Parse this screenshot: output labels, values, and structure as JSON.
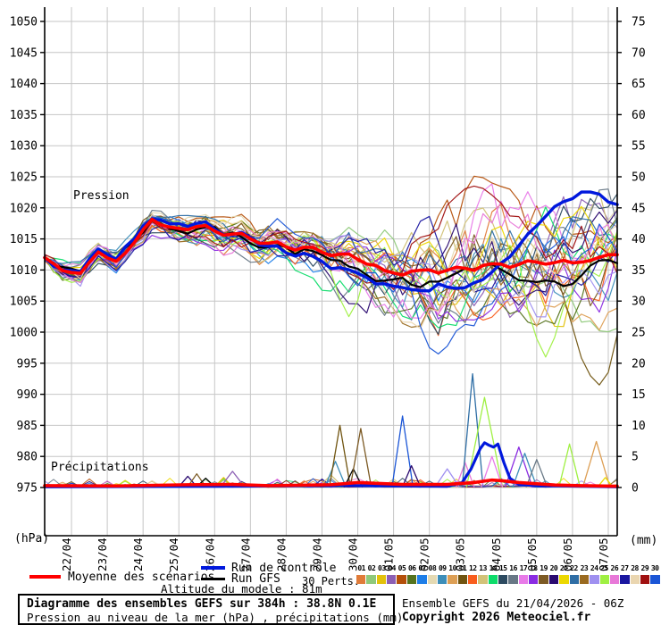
{
  "footer": {
    "box_line1": "Diagramme des ensembles GEFS sur 384h : 38.8N 0.1E",
    "box_line2": "Pression au niveau de la mer (hPa) , précipitations (mm)",
    "altitude": "Altitude du modele : 81m",
    "run_info": "Ensemble GEFS du 21/04/2026 - 06Z",
    "copyright": "Copyright 2026 Meteociel.fr"
  },
  "legend": {
    "mean_label": "Moyenne des scénarios",
    "control_label": "Run de contrôle",
    "gfs_label": "Run GFS",
    "perts_label": "30 Perts.",
    "mean_color": "#ff0000",
    "control_color": "#0018dd",
    "gfs_color": "#000000",
    "perts_numbers": [
      "01",
      "02",
      "03",
      "04",
      "05",
      "06",
      "07",
      "08",
      "09",
      "10",
      "11",
      "12",
      "13",
      "14",
      "15",
      "16",
      "17",
      "18",
      "19",
      "20",
      "21",
      "22",
      "23",
      "24",
      "25",
      "26",
      "27",
      "28",
      "29",
      "30"
    ]
  },
  "chart_data": {
    "type": "line",
    "title": "Diagramme des ensembles GEFS sur 384h : 38.8N 0.1E",
    "subtitle": "Pression au niveau de la mer (hPa) , précipitations (mm)",
    "annotations": {
      "pressure": "Pression",
      "precip": "Précipitations"
    },
    "left_axis": {
      "label": "(hPa)",
      "min": 975,
      "max": 1050,
      "step": 5
    },
    "right_axis": {
      "label": "(mm)",
      "min": 0,
      "max": 75,
      "step": 5
    },
    "x_axis": {
      "labels": [
        "22/04",
        "23/04",
        "24/04",
        "25/04",
        "26/04",
        "27/04",
        "28/04",
        "29/04",
        "30/04",
        "01/05",
        "02/05",
        "03/05",
        "04/05",
        "05/05",
        "06/05",
        "07/05"
      ],
      "run_hours": 384,
      "hours_to_first_tick": 18,
      "tick_interval_hours": 24
    },
    "grid_color": "#c6c6c6",
    "pressure": {
      "time_step_hours": 12,
      "mean": [
        1012,
        1010,
        1009.5,
        1013,
        1011.5,
        1014.5,
        1018,
        1017,
        1016.5,
        1017.2,
        1015.5,
        1015.8,
        1014.2,
        1014.5,
        1013.2,
        1013.8,
        1012.2,
        1012.5,
        1011,
        1010,
        1009.2,
        1010,
        1009.5,
        1010.5,
        1010,
        1011,
        1010.3,
        1011.5,
        1010.8,
        1011.5,
        1011.2,
        1012,
        1012.5
      ],
      "control": [
        1012,
        1010,
        1009.5,
        1013.2,
        1011.5,
        1015,
        1018.5,
        1017.5,
        1017,
        1017.5,
        1015.5,
        1016,
        1014,
        1014,
        1012.5,
        1012,
        1010.5,
        1010,
        1008.5,
        1007.5,
        1007,
        1006.5,
        1007.5,
        1007,
        1008,
        1009.5,
        1012,
        1015.5,
        1018.5,
        1021,
        1022.5,
        1022,
        1020.5
      ],
      "gfs": [
        1012,
        1010.2,
        1009.8,
        1013,
        1011.8,
        1014.8,
        1018,
        1016.8,
        1016,
        1017,
        1015.8,
        1015.5,
        1013.8,
        1014,
        1012.8,
        1013,
        1011.5,
        1010.5,
        1009,
        1008.5,
        1008.8,
        1007.5,
        1008.2,
        1009.5,
        1010,
        1011,
        1009.5,
        1008,
        1008.5,
        1007.5,
        1009,
        1011.5,
        1011
      ],
      "env_min": [
        1011,
        1008.5,
        1008,
        1011.5,
        1010,
        1013,
        1016,
        1015,
        1014.5,
        1014.5,
        1013,
        1013,
        1011,
        1011,
        1009.5,
        1009,
        1006.5,
        1006,
        1004.5,
        1003.5,
        1002.5,
        1002,
        1000,
        1002.5,
        1003,
        1003.5,
        1002.5,
        1003,
        1002,
        1002.5,
        1002,
        1001.5,
        1002
      ],
      "env_max": [
        1013,
        1011.5,
        1011,
        1014.5,
        1013,
        1016,
        1020,
        1019,
        1018.5,
        1019,
        1018,
        1018.5,
        1017,
        1017.5,
        1016.5,
        1017,
        1016,
        1016.5,
        1015.5,
        1015.5,
        1016,
        1017.5,
        1019,
        1021,
        1023.5,
        1022.5,
        1021.5,
        1021,
        1020.5,
        1021,
        1022,
        1021.5,
        1021
      ],
      "excursions": [
        {
          "member": 29,
          "hour": 264,
          "value": 996.5,
          "sigma": 16
        },
        {
          "member": 10,
          "hour": 372,
          "value": 991.5,
          "sigma": 20
        },
        {
          "member": 24,
          "hour": 336,
          "value": 996.0,
          "sigma": 14
        },
        {
          "member": 24,
          "hour": 204,
          "value": 1002.5,
          "sigma": 12
        },
        {
          "member": 28,
          "hour": 288,
          "value": 1023.5,
          "sigma": 40
        }
      ]
    },
    "precip": {
      "mean_anchors": [
        [
          0,
          0.3
        ],
        [
          48,
          0.25
        ],
        [
          96,
          0.45
        ],
        [
          126,
          0.5
        ],
        [
          150,
          0.3
        ],
        [
          192,
          0.45
        ],
        [
          210,
          0.8
        ],
        [
          240,
          0.5
        ],
        [
          270,
          0.5
        ],
        [
          288,
          0.8
        ],
        [
          300,
          1.2
        ],
        [
          306,
          1.1
        ],
        [
          318,
          0.8
        ],
        [
          330,
          0.6
        ],
        [
          342,
          0.4
        ],
        [
          360,
          0.3
        ],
        [
          384,
          0.2
        ]
      ],
      "control_anchors": [
        [
          0,
          0.1
        ],
        [
          120,
          0.2
        ],
        [
          200,
          0.3
        ],
        [
          270,
          0.2
        ],
        [
          280,
          0.8
        ],
        [
          286,
          3
        ],
        [
          292,
          6.2
        ],
        [
          295,
          7.2
        ],
        [
          298,
          6.8
        ],
        [
          301,
          6.5
        ],
        [
          304,
          7.0
        ],
        [
          308,
          4
        ],
        [
          312,
          1.5
        ],
        [
          318,
          0.5
        ],
        [
          330,
          0.3
        ],
        [
          384,
          0.1
        ]
      ],
      "spikes": [
        {
          "hour": 96,
          "peak": 1.8,
          "half_width": 6,
          "color": "#2a0a70"
        },
        {
          "hour": 102,
          "peak": 2.2,
          "half_width": 6,
          "color": "#7c5a24"
        },
        {
          "hour": 108,
          "peak": 1.5,
          "half_width": 6,
          "color": "#000000"
        },
        {
          "hour": 120,
          "peak": 1.6,
          "half_width": 6,
          "color": "#e3c10a"
        },
        {
          "hour": 126,
          "peak": 2.6,
          "half_width": 8,
          "color": "#8c5fb4"
        },
        {
          "hour": 192,
          "peak": 2.0,
          "half_width": 8,
          "color": "#d2c278"
        },
        {
          "hour": 195,
          "peak": 4.2,
          "half_width": 7,
          "color": "#3d8eb9"
        },
        {
          "hour": 198,
          "peak": 10.0,
          "half_width": 7,
          "color": "#705410"
        },
        {
          "hour": 207,
          "peak": 3.0,
          "half_width": 6,
          "color": "#000000"
        },
        {
          "hour": 212,
          "peak": 9.5,
          "half_width": 7,
          "color": "#7c5a24"
        },
        {
          "hour": 240,
          "peak": 11.5,
          "half_width": 7,
          "color": "#1a55d6"
        },
        {
          "hour": 246,
          "peak": 3.5,
          "half_width": 6,
          "color": "#2a0a70"
        },
        {
          "hour": 270,
          "peak": 3.0,
          "half_width": 8,
          "color": "#9f90f0"
        },
        {
          "hour": 282,
          "peak": 4.0,
          "half_width": 6,
          "color": "#e878d8"
        },
        {
          "hour": 287,
          "peak": 18.3,
          "half_width": 7,
          "color": "#2f6ea5"
        },
        {
          "hour": 295,
          "peak": 14.5,
          "half_width": 12,
          "color": "#9ff042"
        },
        {
          "hour": 300,
          "peak": 5.0,
          "half_width": 7,
          "color": "#e87ae8"
        },
        {
          "hour": 318,
          "peak": 6.5,
          "half_width": 9,
          "color": "#8a2be2"
        },
        {
          "hour": 322,
          "peak": 5.5,
          "half_width": 8,
          "color": "#3d8eb9"
        },
        {
          "hour": 330,
          "peak": 4.5,
          "half_width": 7,
          "color": "#687886"
        },
        {
          "hour": 352,
          "peak": 7.0,
          "half_width": 7,
          "color": "#9ff042"
        },
        {
          "hour": 370,
          "peak": 7.4,
          "half_width": 9,
          "color": "#dd9f55"
        },
        {
          "hour": 376,
          "peak": 1.6,
          "half_width": 5,
          "color": "#ecd800"
        }
      ]
    },
    "members": {
      "count": 30,
      "colors": [
        "#e07b39",
        "#8fc97a",
        "#e3c10a",
        "#8c5fb4",
        "#b44f0a",
        "#55731e",
        "#1e7ee8",
        "#e4d9b2",
        "#3d8eb9",
        "#dd9f55",
        "#705410",
        "#f95d1d",
        "#d2c278",
        "#0ddc6a",
        "#2c4a60",
        "#687886",
        "#e87ae8",
        "#8a2be2",
        "#7c5a24",
        "#2a0a70",
        "#ecd800",
        "#2f6ea5",
        "#9a6a20",
        "#9f90f0",
        "#9ff042",
        "#e878d8",
        "#1a16a0",
        "#ead6b0",
        "#a01010",
        "#1a55d6"
      ]
    }
  }
}
